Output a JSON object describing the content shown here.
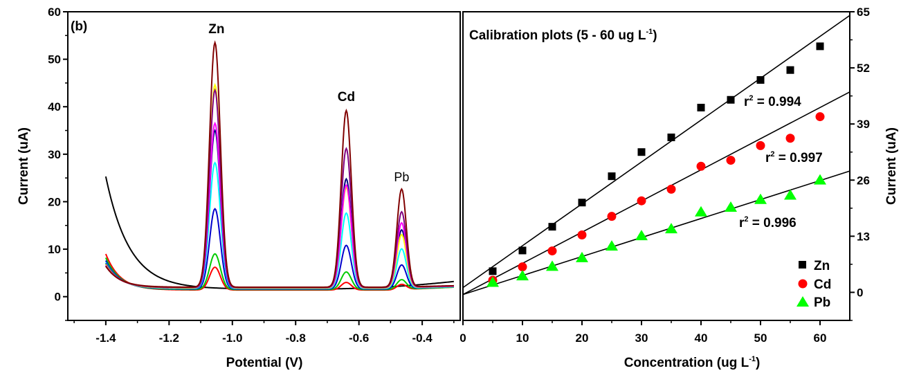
{
  "chart_data": [
    {
      "type": "line",
      "panel_label": "(b)",
      "xlabel": "Potential (V)",
      "ylabel": "Current (uA)",
      "xlim": [
        -1.52,
        -0.28
      ],
      "ylim": [
        -5,
        60
      ],
      "xticks": [
        "-1.4",
        "-1.2",
        "-1.0",
        "-0.8",
        "-0.6",
        "-0.4"
      ],
      "xtick_values": [
        -1.4,
        -1.2,
        -1.0,
        -0.8,
        -0.6,
        -0.4
      ],
      "yticks": [
        "0",
        "10",
        "20",
        "30",
        "40",
        "50",
        "60"
      ],
      "ytick_values": [
        0,
        10,
        20,
        30,
        40,
        50,
        60
      ],
      "grid": false,
      "peak_labels": [
        {
          "text": "Zn",
          "x": -1.05,
          "y": 55.5
        },
        {
          "text": "Cd",
          "x": -0.64,
          "y": 41.2
        },
        {
          "text": "Pb",
          "x": -0.465,
          "y": 24.3
        }
      ],
      "peak_positions": [
        -1.055,
        -0.64,
        -0.465
      ],
      "peak_widths": [
        0.017,
        0.016,
        0.015
      ],
      "series": [
        {
          "color": "#000000",
          "blank": true,
          "start": 25.3,
          "baseline": 1.6,
          "end": 3.2,
          "peaks": [
            0,
            0,
            0
          ]
        },
        {
          "color": "#ff0000",
          "start": 9.0,
          "baseline": 1.4,
          "end": 2.0,
          "peaks": [
            6.2,
            3.0,
            2.5
          ]
        },
        {
          "color": "#00cc00",
          "start": 8.2,
          "baseline": 1.5,
          "end": 2.0,
          "peaks": [
            9.0,
            5.2,
            3.5
          ]
        },
        {
          "color": "#0000cc",
          "start": 7.6,
          "baseline": 1.6,
          "end": 2.1,
          "peaks": [
            18.5,
            10.8,
            6.6
          ]
        },
        {
          "color": "#00ffff",
          "start": 7.2,
          "baseline": 1.7,
          "end": 2.1,
          "peaks": [
            28.2,
            17.6,
            10.0
          ]
        },
        {
          "color": "#000080",
          "start": 7.0,
          "baseline": 1.8,
          "end": 2.2,
          "peaks": [
            35.0,
            24.8,
            14.0
          ]
        },
        {
          "color": "#ffff00",
          "start": 6.8,
          "baseline": 1.8,
          "end": 2.2,
          "peaks": [
            44.6,
            23.0,
            13.0
          ]
        },
        {
          "color": "#ff00ff",
          "start": 6.6,
          "baseline": 1.9,
          "end": 2.2,
          "peaks": [
            36.5,
            23.5,
            15.5
          ]
        },
        {
          "color": "#800080",
          "start": 6.5,
          "baseline": 1.9,
          "end": 2.3,
          "peaks": [
            43.5,
            31.2,
            17.8
          ]
        },
        {
          "color": "#800000",
          "start": 6.4,
          "baseline": 2.0,
          "end": 2.3,
          "peaks": [
            53.5,
            39.2,
            22.6
          ]
        }
      ]
    },
    {
      "type": "scatter",
      "title": "Calibration plots (5 - 60 ug L",
      "title_sup": "-1",
      "title_end": ")",
      "xlabel": "Concentration (ug L",
      "xlabel_sup": "-1",
      "xlabel_end": ")",
      "ylabel": "Current (uA)",
      "xlim": [
        0,
        65
      ],
      "ylim": [
        -6.5,
        65
      ],
      "xticks": [
        "0",
        "10",
        "20",
        "30",
        "40",
        "50",
        "60"
      ],
      "xtick_values": [
        0,
        10,
        20,
        30,
        40,
        50,
        60
      ],
      "yticks": [
        "0",
        "13",
        "26",
        "39",
        "52",
        "65"
      ],
      "ytick_values": [
        0,
        13,
        26,
        39,
        52,
        65
      ],
      "grid": false,
      "legend_position": "bottom-right",
      "series": [
        {
          "name": "Zn",
          "marker": "square",
          "color": "#000000",
          "x": [
            5,
            10,
            15,
            20,
            25,
            30,
            35,
            40,
            45,
            50,
            55,
            60
          ],
          "y": [
            4.9,
            9.7,
            15.2,
            20.8,
            26.9,
            32.5,
            35.9,
            42.8,
            44.6,
            49.2,
            51.5,
            57.0
          ],
          "fit": {
            "slope": 0.97,
            "intercept": 1.1
          },
          "r2_label": "r",
          "r2_sup": "2",
          "r2_value": " = 0.994"
        },
        {
          "name": "Cd",
          "marker": "circle",
          "color": "#ff0000",
          "x": [
            5,
            10,
            15,
            20,
            25,
            30,
            35,
            40,
            45,
            50,
            55,
            60
          ],
          "y": [
            2.8,
            5.9,
            9.6,
            13.3,
            17.6,
            21.2,
            23.9,
            29.2,
            30.6,
            34.0,
            35.7,
            40.7
          ],
          "fit": {
            "slope": 0.722,
            "intercept": -0.5
          },
          "r2_label": "r",
          "r2_sup": "2",
          "r2_value": " = 0.997"
        },
        {
          "name": "Pb",
          "marker": "triangle",
          "color": "#00ff00",
          "x": [
            5,
            10,
            15,
            20,
            25,
            30,
            35,
            40,
            45,
            50,
            55,
            60
          ],
          "y": [
            2.4,
            3.9,
            6.1,
            8.1,
            10.8,
            13.2,
            14.8,
            18.7,
            19.8,
            21.6,
            22.6,
            26.1
          ],
          "fit": {
            "slope": 0.44,
            "intercept": -0.5
          },
          "r2_label": "r",
          "r2_sup": "2",
          "r2_value": " = 0.996"
        }
      ]
    }
  ]
}
